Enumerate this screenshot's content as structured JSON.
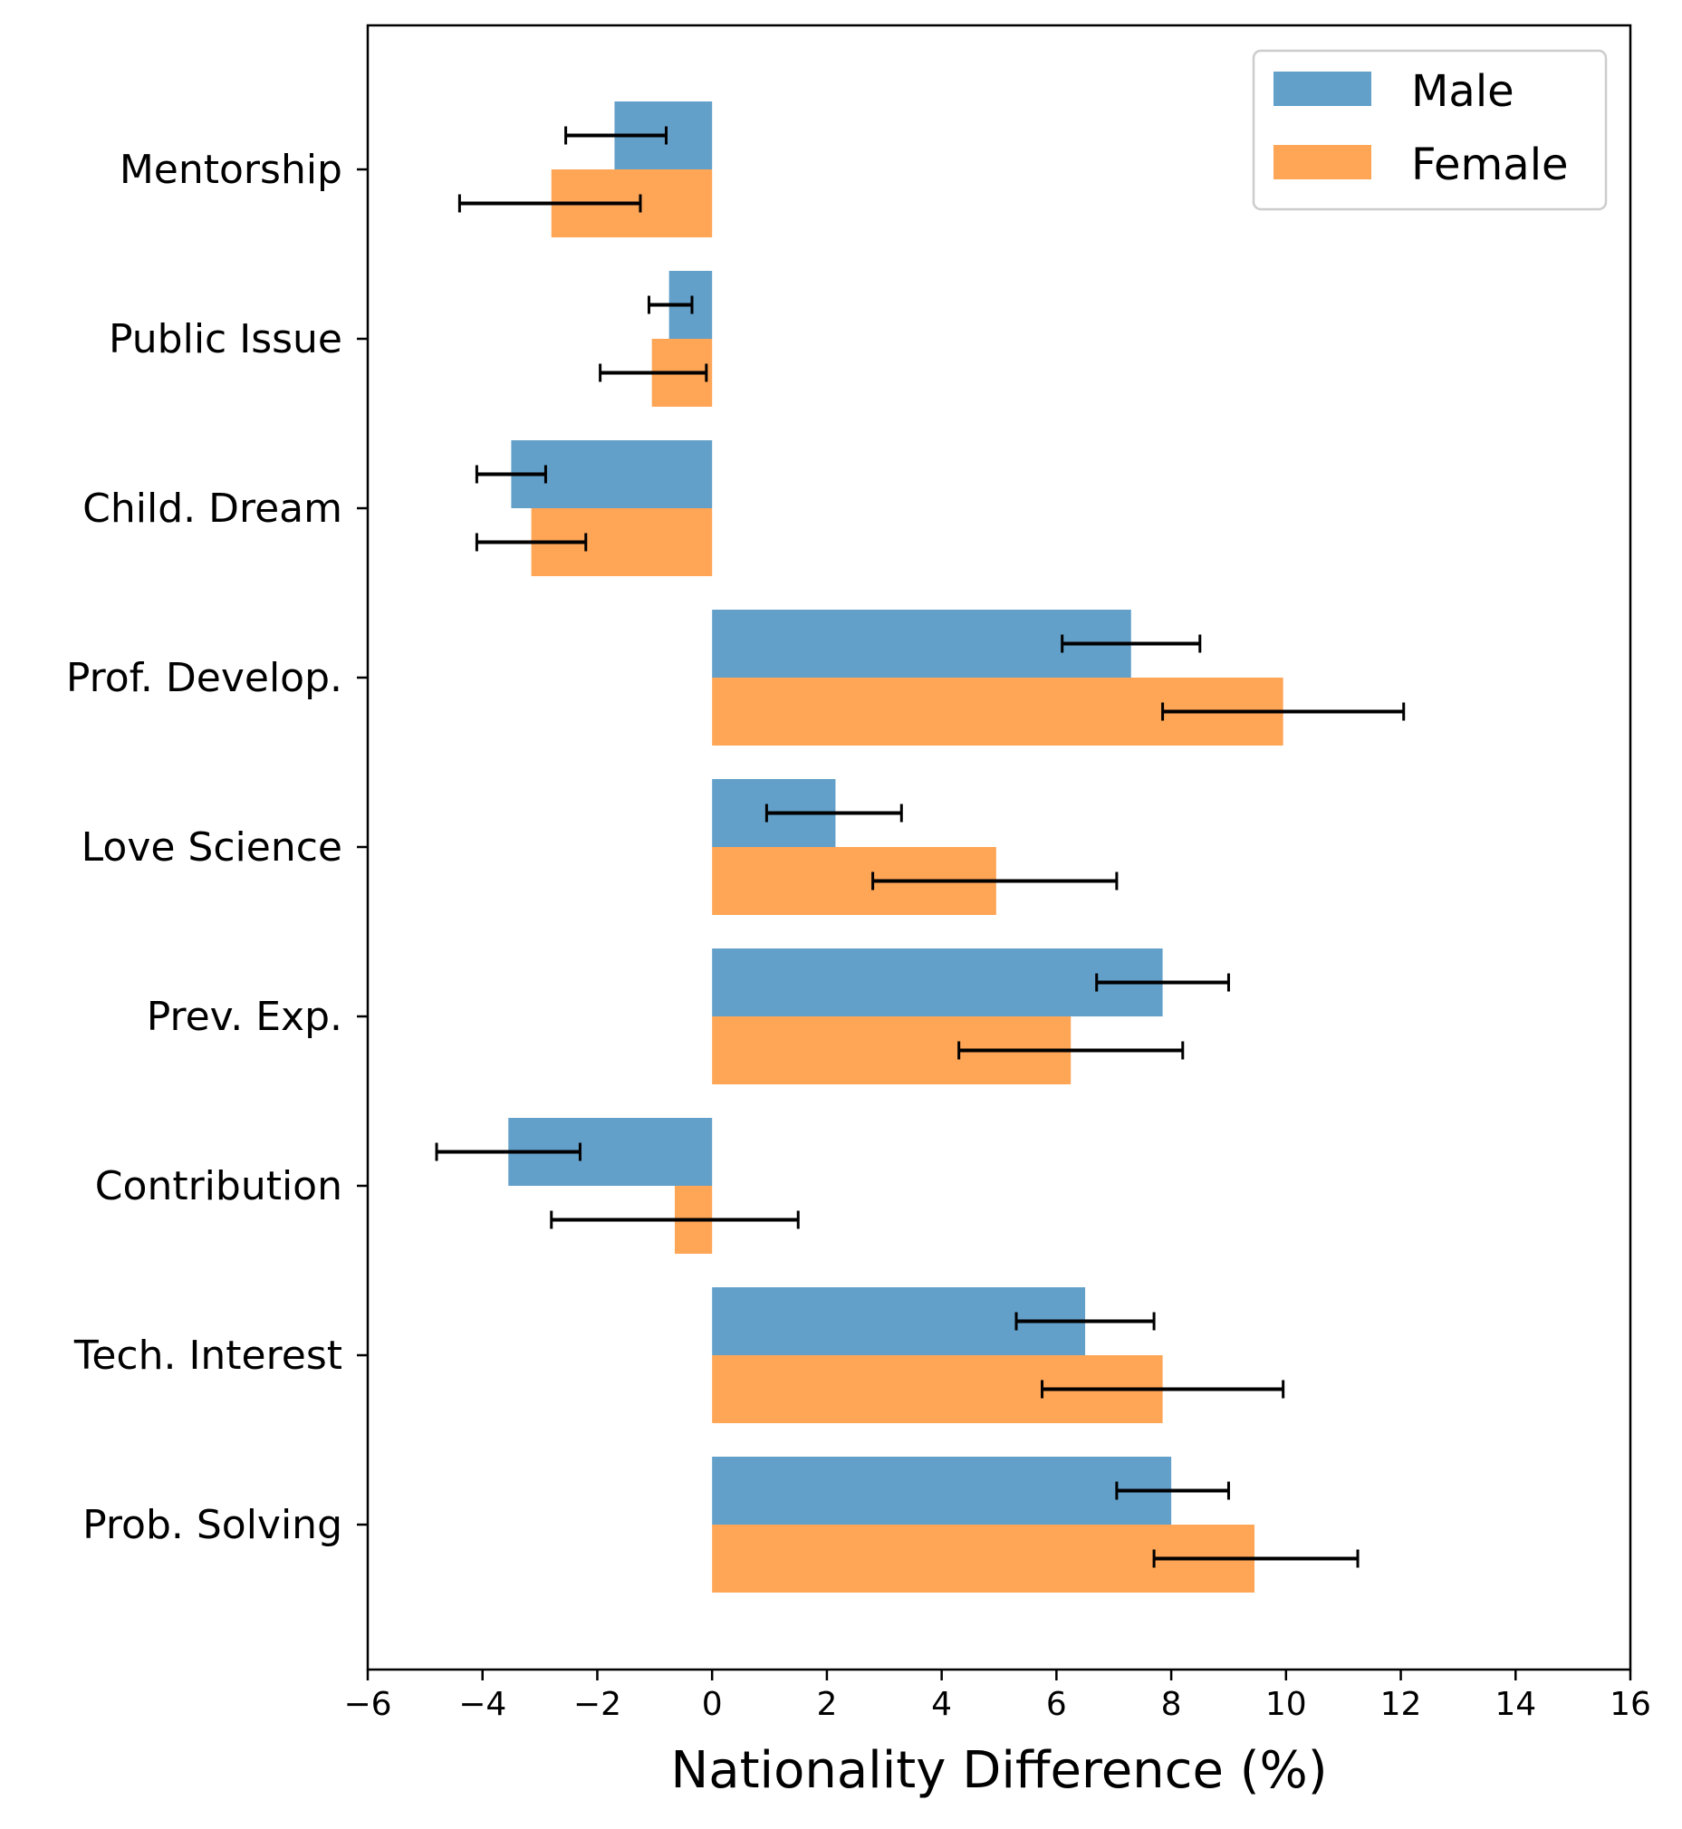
{
  "chart_data": {
    "type": "bar",
    "orientation": "horizontal",
    "title": "",
    "xlabel": "Nationality Difference (%)",
    "ylabel": "",
    "xlim": [
      -6,
      16
    ],
    "xticks": [
      -6,
      -4,
      -2,
      0,
      2,
      4,
      6,
      8,
      10,
      12,
      14,
      16
    ],
    "xtick_labels": [
      "−6",
      "−4",
      "−2",
      "0",
      "2",
      "4",
      "6",
      "8",
      "10",
      "12",
      "14",
      "16"
    ],
    "categories": [
      "Mentorship",
      "Public Issue",
      "Child. Dream",
      "Prof. Develop.",
      "Love Science",
      "Prev. Exp.",
      "Contribution",
      "Tech. Interest",
      "Prob. Solving"
    ],
    "series": [
      {
        "name": "Male",
        "color": "#62a0ca",
        "values": [
          -1.7,
          -0.75,
          -3.5,
          7.3,
          2.15,
          7.85,
          -3.55,
          6.5,
          8.0
        ],
        "err_low": [
          -2.55,
          -1.1,
          -4.1,
          6.1,
          0.95,
          6.7,
          -4.8,
          5.3,
          7.05
        ],
        "err_high": [
          -0.8,
          -0.35,
          -2.9,
          8.5,
          3.3,
          9.0,
          -2.3,
          7.7,
          9.0
        ]
      },
      {
        "name": "Female",
        "color": "#ffa556",
        "values": [
          -2.8,
          -1.05,
          -3.15,
          9.95,
          4.95,
          6.25,
          -0.65,
          7.85,
          9.45
        ],
        "err_low": [
          -4.4,
          -1.95,
          -4.1,
          7.85,
          2.8,
          4.3,
          -2.8,
          5.75,
          7.7
        ],
        "err_high": [
          -1.25,
          -0.1,
          -2.2,
          12.05,
          7.05,
          8.2,
          1.5,
          9.95,
          11.25
        ]
      }
    ],
    "error_bar_color": "#000000",
    "legend": {
      "position": "top-right",
      "entries": [
        "Male",
        "Female"
      ]
    },
    "grid": false
  }
}
